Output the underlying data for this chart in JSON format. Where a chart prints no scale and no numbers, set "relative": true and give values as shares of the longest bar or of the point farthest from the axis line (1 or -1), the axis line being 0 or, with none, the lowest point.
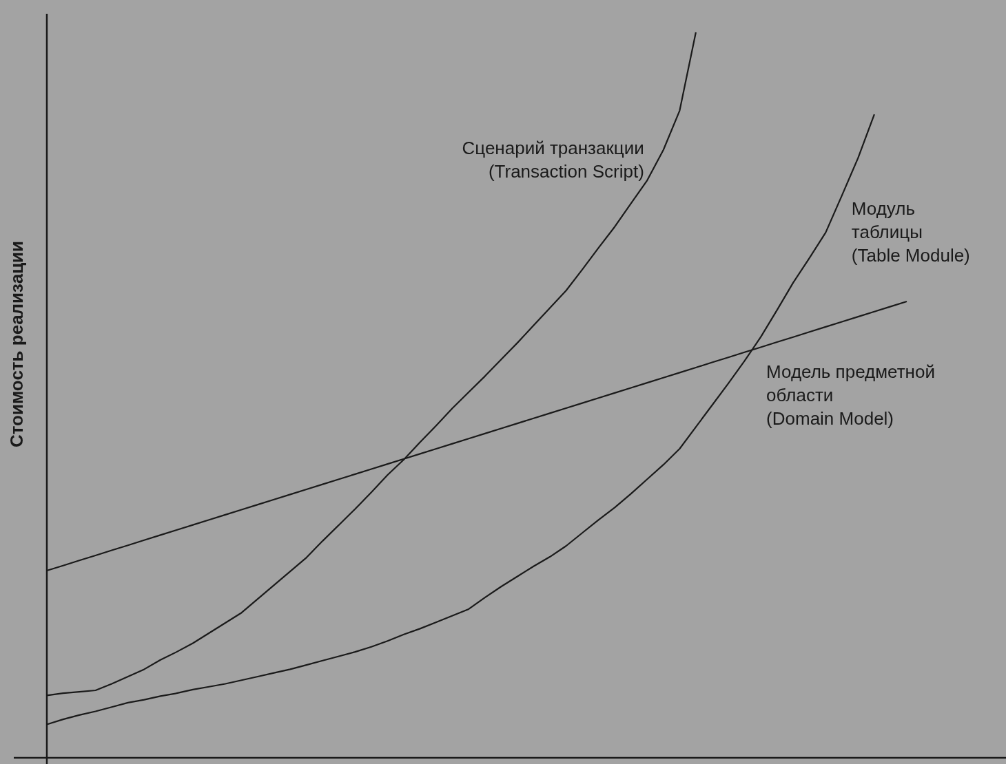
{
  "chart_data": {
    "type": "line",
    "ylabel": "Стоимость реализации",
    "relative": true,
    "marker": "none",
    "line_style": "solid",
    "categories": [
      null,
      null,
      null,
      null,
      null,
      null,
      null,
      null,
      null,
      null,
      null,
      null,
      null,
      null,
      null,
      null,
      null,
      null,
      null,
      null,
      null,
      null,
      null,
      null,
      null,
      null,
      null,
      null,
      null,
      null,
      null,
      null,
      null,
      null,
      null,
      null,
      null,
      null,
      null,
      null,
      null,
      null,
      null,
      null,
      null,
      null,
      null,
      null,
      null,
      null,
      null,
      null,
      null,
      null
    ],
    "series": [
      {
        "name": "Сценарий транзакции\n(Transaction Script)",
        "color": "#1a1a1a",
        "values": [
          0.086,
          0.089,
          0.091,
          0.093,
          0.102,
          0.112,
          0.122,
          0.135,
          0.146,
          0.158,
          0.172,
          0.186,
          0.2,
          0.219,
          0.238,
          0.257,
          0.276,
          0.299,
          0.321,
          0.343,
          0.366,
          0.39,
          0.411,
          0.435,
          0.458,
          0.482,
          0.504,
          0.526,
          0.549,
          0.572,
          0.596,
          0.62,
          0.644,
          0.673,
          0.703,
          0.732,
          0.764,
          0.796,
          0.838,
          0.892,
          1.0,
          null,
          null,
          null,
          null,
          null,
          null,
          null,
          null,
          null,
          null,
          null,
          null,
          null
        ]
      },
      {
        "name": "Модуль\nтаблицы\n(Table Module)",
        "color": "#1a1a1a",
        "values": [
          0.046,
          0.053,
          0.059,
          0.064,
          0.07,
          0.076,
          0.08,
          0.085,
          0.089,
          0.094,
          0.098,
          0.102,
          0.107,
          0.112,
          0.117,
          0.122,
          0.128,
          0.134,
          0.14,
          0.146,
          0.153,
          0.161,
          0.17,
          0.178,
          0.187,
          0.196,
          0.205,
          0.221,
          0.236,
          0.25,
          0.264,
          0.277,
          0.292,
          0.31,
          0.328,
          0.345,
          0.364,
          0.384,
          0.404,
          0.426,
          0.456,
          0.486,
          0.516,
          0.547,
          0.58,
          0.617,
          0.655,
          0.689,
          0.724,
          0.775,
          0.827,
          0.887,
          null,
          null
        ]
      },
      {
        "name": "Модель предметной\nобласти\n(Domain Model)",
        "color": "#1a1a1a",
        "values": [
          0.258,
          0.265,
          0.272,
          0.279,
          0.286,
          0.293,
          0.3,
          0.307,
          0.314,
          0.321,
          0.328,
          0.335,
          0.342,
          0.349,
          0.356,
          0.363,
          0.37,
          0.377,
          0.384,
          0.391,
          0.398,
          0.405,
          0.412,
          0.419,
          0.426,
          0.433,
          0.44,
          0.447,
          0.454,
          0.461,
          0.468,
          0.475,
          0.482,
          0.489,
          0.496,
          0.503,
          0.51,
          0.517,
          0.524,
          0.531,
          0.538,
          0.545,
          0.552,
          0.559,
          0.566,
          0.573,
          0.58,
          0.587,
          0.594,
          0.601,
          0.608,
          0.615,
          0.622,
          0.629
        ]
      }
    ]
  }
}
